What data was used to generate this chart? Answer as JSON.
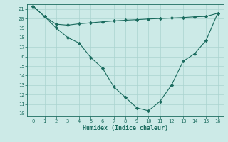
{
  "x": [
    0,
    1,
    2,
    3,
    4,
    5,
    6,
    7,
    8,
    9,
    10,
    11,
    12,
    13,
    14,
    15,
    16
  ],
  "line1": [
    21.3,
    20.2,
    19.4,
    19.3,
    19.45,
    19.55,
    19.65,
    19.75,
    19.82,
    19.88,
    19.95,
    20.0,
    20.05,
    20.1,
    20.18,
    20.22,
    20.55
  ],
  "line2": [
    21.3,
    20.2,
    19.0,
    18.0,
    17.4,
    15.9,
    14.8,
    12.8,
    11.7,
    10.6,
    10.3,
    11.3,
    13.0,
    15.5,
    16.3,
    17.7,
    20.55
  ],
  "xlabel": "Humidex (Indice chaleur)",
  "ylim_min": 9.7,
  "ylim_max": 21.5,
  "xlim_min": -0.5,
  "xlim_max": 16.5,
  "yticks": [
    10,
    11,
    12,
    13,
    14,
    15,
    16,
    17,
    18,
    19,
    20,
    21
  ],
  "xticks": [
    0,
    1,
    2,
    3,
    4,
    5,
    6,
    7,
    8,
    9,
    10,
    11,
    12,
    13,
    14,
    15,
    16
  ],
  "line_color": "#1a6b5e",
  "bg_color": "#cceae7",
  "grid_color": "#aad4d0",
  "marker": "D",
  "marker_size": 2.2,
  "linewidth": 0.8,
  "tick_fontsize": 5.0,
  "xlabel_fontsize": 6.0
}
